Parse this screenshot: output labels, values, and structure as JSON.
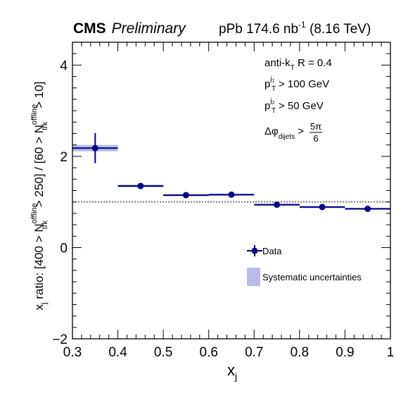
{
  "header": {
    "experiment": "CMS",
    "status": "Preliminary",
    "dataset_main": "pPb 174.6 nb",
    "dataset_exp": "-1",
    "dataset_energy": " (8.16 TeV)"
  },
  "cuts": {
    "jet_algo": "anti-k",
    "jet_algo_sub": "T",
    "jet_radius": " R = 0.4",
    "pt1_base": "p",
    "pt1_sub": "T",
    "pt1_sup": "j",
    "pt1_supsub": "1",
    "pt1_value": " > 100 GeV",
    "pt2_base": "p",
    "pt2_sub": "T",
    "pt2_sup": "j",
    "pt2_supsub": "2",
    "pt2_value": " > 50 GeV",
    "dphi_base": "Δφ",
    "dphi_sub": "dijets",
    "dphi_gt": " >",
    "dphi_num": "5π",
    "dphi_den": "6"
  },
  "axes": {
    "x_title_base": "x",
    "x_title_sub": "j",
    "y_title": {
      "a": "x",
      "a_sub": "j",
      "b": " ratio: [400 > N",
      "n1_sup": "offline",
      "n1_sub": "trk",
      "c": " > 250] / [60 > N",
      "n2_sup": "offline",
      "n2_sub": "trk",
      "d": " > 10]"
    }
  },
  "legend": {
    "position": "lower-right",
    "data_label": "Data",
    "syst_label": "Systematic uncertainties"
  },
  "colors": {
    "data": "#00008b",
    "syst_band": "#b9bde6",
    "reference": "#000000"
  },
  "chart_data": {
    "type": "scatter",
    "xlim": [
      0.3,
      1.0
    ],
    "ylim": [
      -2,
      4.5
    ],
    "x_ticks": [
      0.3,
      0.4,
      0.5,
      0.6,
      0.7,
      0.8,
      0.9,
      1.0
    ],
    "x_tick_labels": [
      "0.3",
      "0.4",
      "0.5",
      "0.6",
      "0.7",
      "0.8",
      "0.9",
      "1"
    ],
    "y_ticks": [
      -2,
      0,
      2,
      4
    ],
    "y_tick_labels": [
      "−2",
      "0",
      "2",
      "4"
    ],
    "reference_line": 1.0,
    "grid": false,
    "series": [
      {
        "name": "Data",
        "points": [
          {
            "x": 0.35,
            "x_low": 0.3,
            "x_high": 0.4,
            "y": 2.18,
            "stat": 0.33,
            "syst": 0.07
          },
          {
            "x": 0.45,
            "x_low": 0.4,
            "x_high": 0.5,
            "y": 1.35,
            "stat": 0.02,
            "syst": 0.03
          },
          {
            "x": 0.55,
            "x_low": 0.5,
            "x_high": 0.6,
            "y": 1.15,
            "stat": 0.01,
            "syst": 0.02
          },
          {
            "x": 0.65,
            "x_low": 0.6,
            "x_high": 0.7,
            "y": 1.16,
            "stat": 0.01,
            "syst": 0.02
          },
          {
            "x": 0.75,
            "x_low": 0.7,
            "x_high": 0.8,
            "y": 0.94,
            "stat": 0.01,
            "syst": 0.02
          },
          {
            "x": 0.85,
            "x_low": 0.8,
            "x_high": 0.9,
            "y": 0.89,
            "stat": 0.01,
            "syst": 0.02
          },
          {
            "x": 0.95,
            "x_low": 0.9,
            "x_high": 1.0,
            "y": 0.85,
            "stat": 0.01,
            "syst": 0.02
          }
        ]
      }
    ]
  }
}
